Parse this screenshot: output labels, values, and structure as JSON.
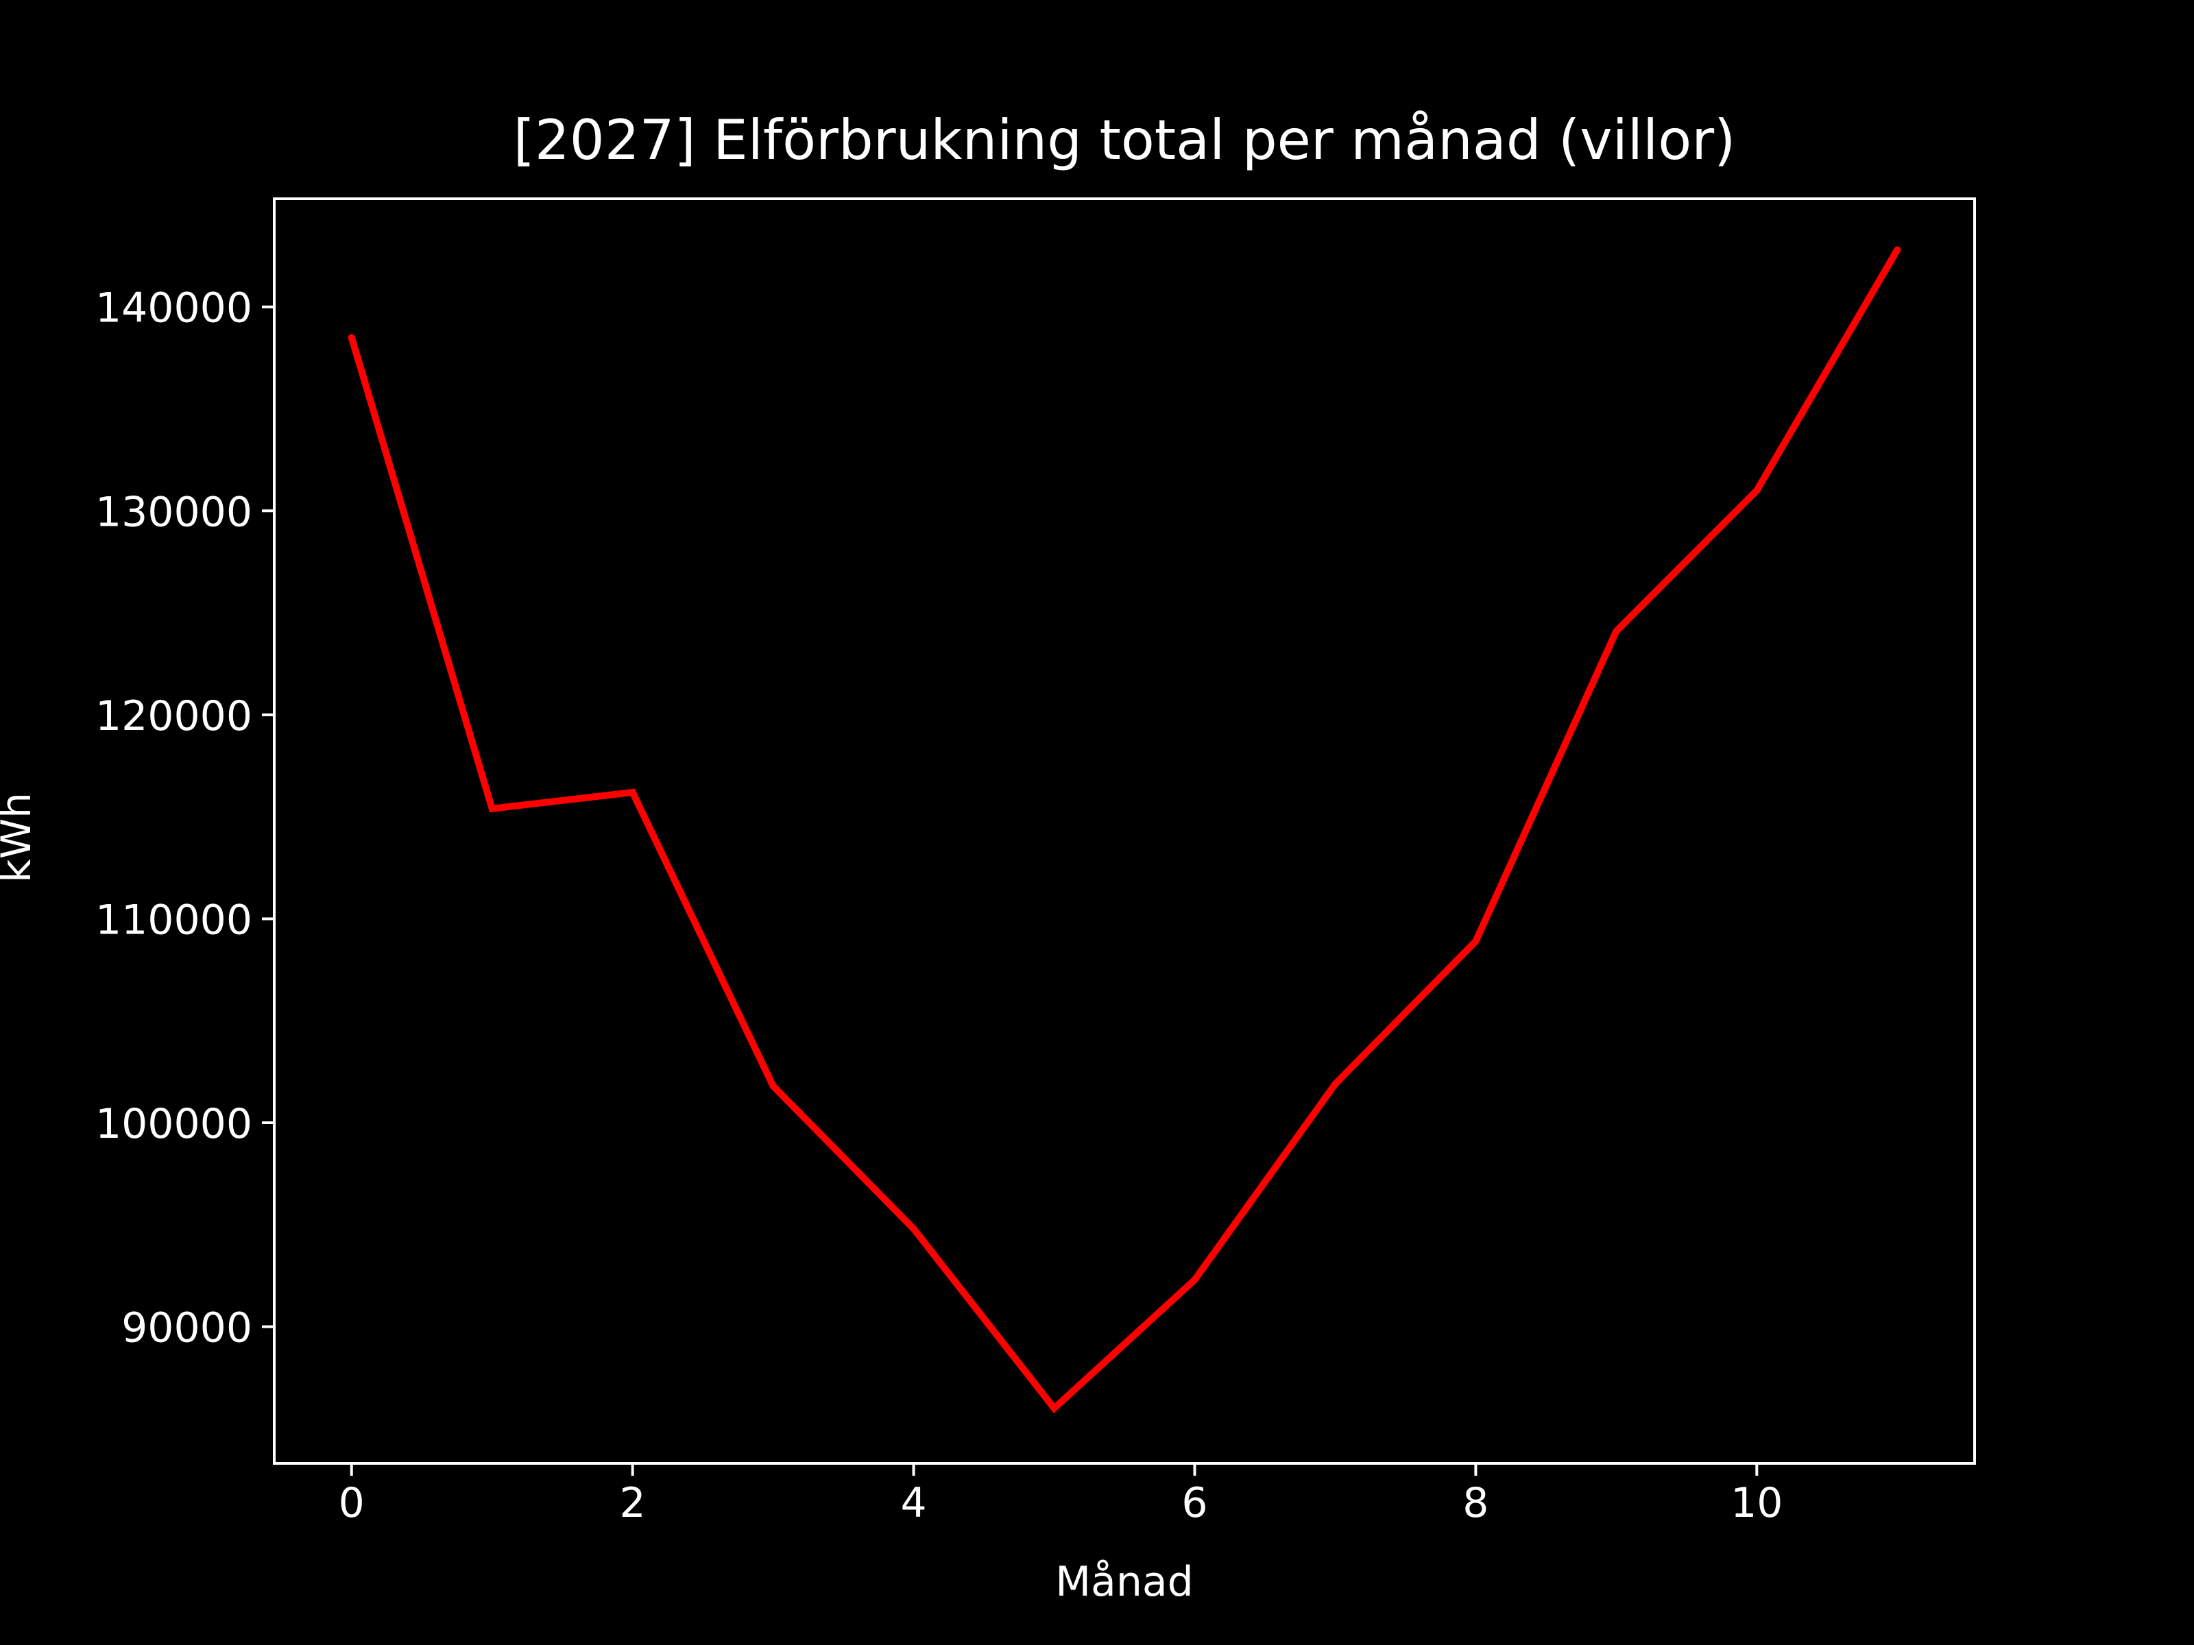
{
  "chart_data": {
    "type": "line",
    "title": "[2027] Elförbrukning total per månad (villor)",
    "xlabel": "Månad",
    "ylabel": "kWh",
    "x": [
      0,
      1,
      2,
      3,
      4,
      5,
      6,
      7,
      8,
      9,
      10,
      11
    ],
    "series": [
      {
        "values": [
          138500,
          115400,
          116200,
          101800,
          94800,
          86000,
          92300,
          101900,
          108900,
          124100,
          131000,
          142800
        ]
      }
    ],
    "xlim": [
      -0.55,
      11.55
    ],
    "ylim": [
      83300,
      145300
    ],
    "xticks": [
      0,
      2,
      4,
      6,
      8,
      10
    ],
    "yticks": [
      90000,
      100000,
      110000,
      120000,
      130000,
      140000
    ],
    "grid": false,
    "legend": "none",
    "colors": {
      "background": "#000000",
      "axes": "#ffffff",
      "text": "#ffffff",
      "line": "#ff0000"
    }
  }
}
